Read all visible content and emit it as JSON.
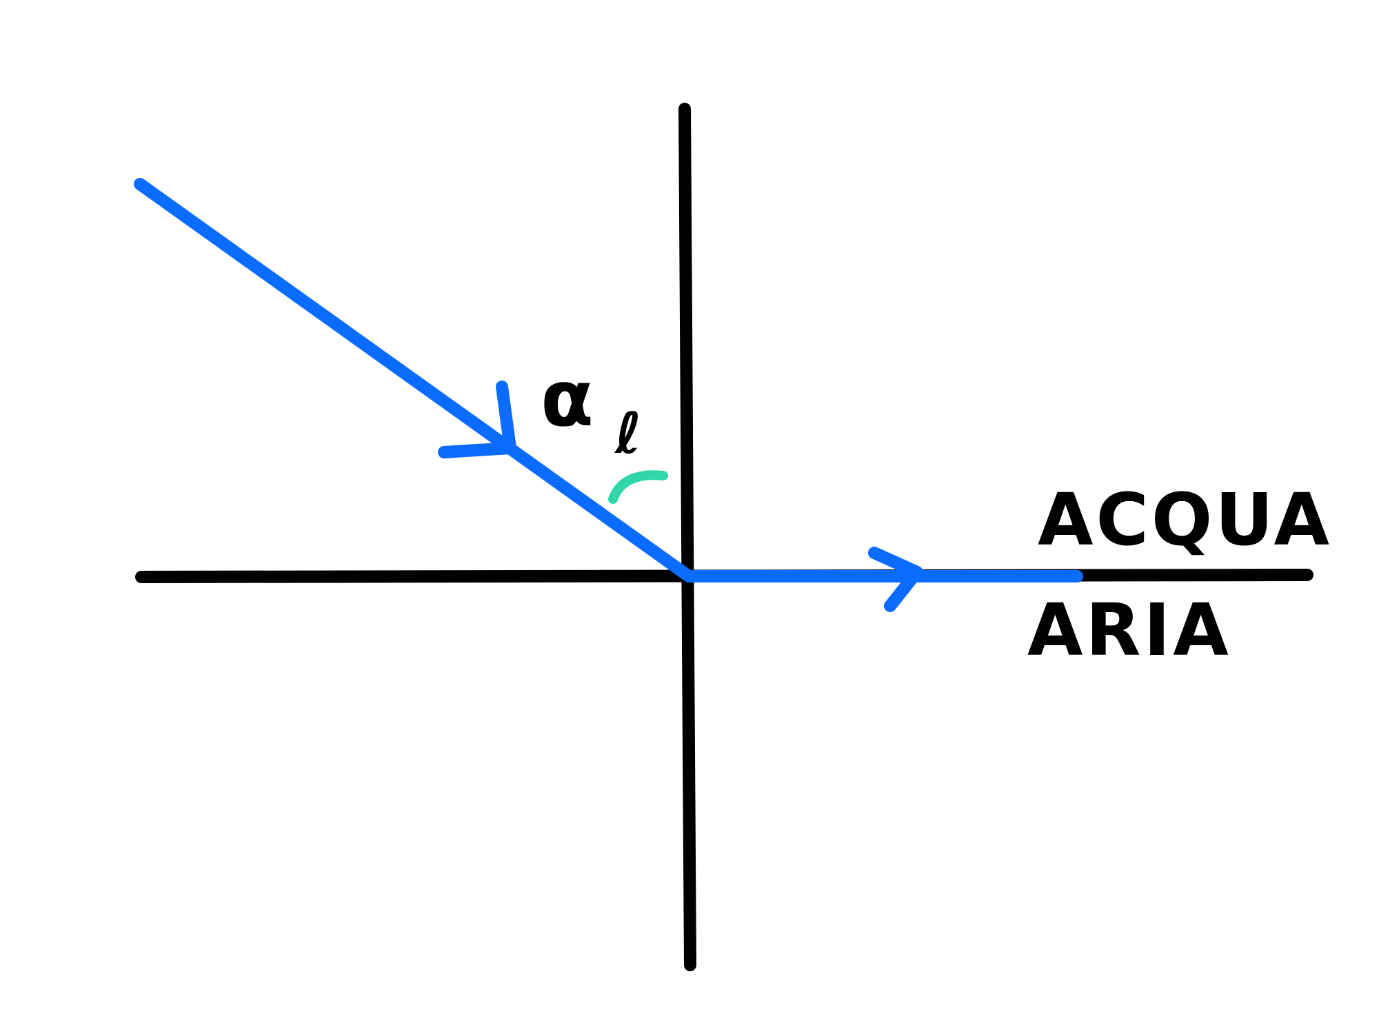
{
  "colors": {
    "axis": "#000000",
    "ray": "#0A6CFF",
    "angle_arc": "#2ED6A8",
    "background": "#FFFFFF"
  },
  "labels": {
    "upper_medium": "ACQUA",
    "lower_medium": "ARIA",
    "angle_symbol": "α",
    "angle_subscript": "ℓ"
  }
}
